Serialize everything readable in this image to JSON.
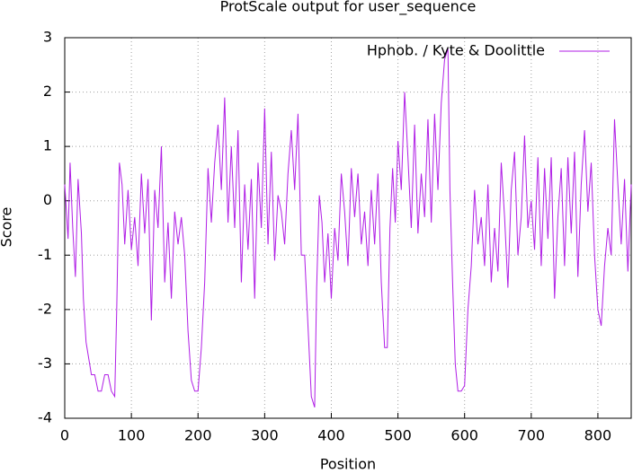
{
  "chart_data": {
    "type": "line",
    "title": "ProtScale output for user_sequence",
    "x_label": "Position",
    "y_label": "Score",
    "x": [
      0,
      5,
      8,
      12,
      16,
      20,
      25,
      28,
      32,
      36,
      40,
      45,
      50,
      55,
      60,
      65,
      70,
      75,
      78,
      82,
      86,
      90,
      95,
      100,
      105,
      110,
      115,
      120,
      125,
      130,
      135,
      140,
      145,
      150,
      155,
      160,
      165,
      170,
      175,
      180,
      185,
      190,
      195,
      200,
      205,
      210,
      215,
      220,
      225,
      230,
      235,
      240,
      245,
      250,
      255,
      260,
      265,
      270,
      275,
      280,
      285,
      290,
      295,
      300,
      305,
      310,
      315,
      320,
      325,
      330,
      335,
      340,
      345,
      350,
      355,
      360,
      365,
      370,
      375,
      378,
      382,
      386,
      390,
      395,
      400,
      405,
      410,
      415,
      420,
      425,
      430,
      435,
      440,
      445,
      450,
      455,
      460,
      465,
      470,
      475,
      480,
      484,
      488,
      492,
      496,
      500,
      505,
      510,
      515,
      520,
      525,
      530,
      535,
      540,
      545,
      550,
      555,
      560,
      565,
      570,
      575,
      578,
      582,
      586,
      590,
      595,
      600,
      605,
      610,
      615,
      620,
      625,
      630,
      635,
      640,
      645,
      650,
      655,
      660,
      665,
      670,
      675,
      680,
      685,
      690,
      695,
      700,
      705,
      710,
      715,
      720,
      725,
      730,
      735,
      740,
      745,
      750,
      755,
      760,
      765,
      770,
      775,
      780,
      785,
      790,
      795,
      800,
      805,
      810,
      815,
      820,
      825,
      830,
      835,
      840,
      845,
      850
    ],
    "series": [
      {
        "name": "Hphob. / Kyte & Doolittle",
        "color": "#b01ee6",
        "values": [
          0.3,
          -0.7,
          0.7,
          -0.5,
          -1.4,
          0.4,
          -0.6,
          -1.8,
          -2.6,
          -2.9,
          -3.2,
          -3.2,
          -3.5,
          -3.5,
          -3.2,
          -3.2,
          -3.5,
          -3.6,
          -2.0,
          0.7,
          0.3,
          -0.8,
          0.2,
          -0.9,
          -0.3,
          -1.2,
          0.5,
          -0.6,
          0.4,
          -2.2,
          0.2,
          -0.5,
          1.0,
          -1.5,
          -0.4,
          -1.8,
          -0.2,
          -0.8,
          -0.3,
          -1.0,
          -2.4,
          -3.3,
          -3.5,
          -3.5,
          -2.7,
          -1.5,
          0.6,
          -0.4,
          0.7,
          1.4,
          0.2,
          1.9,
          -0.4,
          1.0,
          -0.5,
          1.3,
          -1.5,
          0.3,
          -0.9,
          0.4,
          -1.8,
          0.7,
          -0.5,
          1.7,
          -0.8,
          0.9,
          -1.1,
          0.1,
          -0.2,
          -0.8,
          0.5,
          1.3,
          0.2,
          1.6,
          -1.0,
          -1.0,
          -2.3,
          -3.6,
          -3.8,
          -1.6,
          0.1,
          -0.4,
          -1.5,
          -0.6,
          -1.8,
          -0.5,
          -1.1,
          0.5,
          -0.2,
          -1.2,
          0.6,
          -0.3,
          0.5,
          -0.8,
          -0.2,
          -1.2,
          0.2,
          -0.8,
          0.5,
          -1.5,
          -2.7,
          -2.7,
          -0.5,
          0.6,
          -0.4,
          1.1,
          0.2,
          2.0,
          0.8,
          -0.5,
          1.4,
          -0.6,
          0.5,
          -0.3,
          1.5,
          -0.4,
          1.6,
          0.2,
          1.8,
          2.6,
          2.8,
          0.2,
          -1.5,
          -3.0,
          -3.5,
          -3.5,
          -3.4,
          -2.0,
          -1.2,
          0.2,
          -0.8,
          -0.3,
          -1.2,
          0.3,
          -1.5,
          -0.5,
          -1.3,
          0.7,
          -0.3,
          -1.6,
          0.2,
          0.9,
          -1.0,
          -0.3,
          1.2,
          -0.5,
          0.0,
          -0.9,
          0.8,
          -1.2,
          0.6,
          -0.7,
          0.8,
          -1.8,
          -0.3,
          0.6,
          -1.2,
          0.8,
          -0.6,
          0.9,
          -1.4,
          0.3,
          1.3,
          -0.2,
          0.7,
          -1.0,
          -2.0,
          -2.3,
          -1.2,
          -0.5,
          -1.0,
          1.5,
          0.3,
          -0.8,
          0.4,
          -1.3,
          0.3
        ]
      }
    ],
    "xlim": [
      0,
      850
    ],
    "xticks": [
      0,
      100,
      200,
      300,
      400,
      500,
      600,
      700,
      800
    ],
    "ylim": [
      -4,
      3
    ],
    "yticks": [
      -4,
      -3,
      -2,
      -1,
      0,
      1,
      2,
      3
    ],
    "grid": true,
    "legend": "top-right"
  }
}
